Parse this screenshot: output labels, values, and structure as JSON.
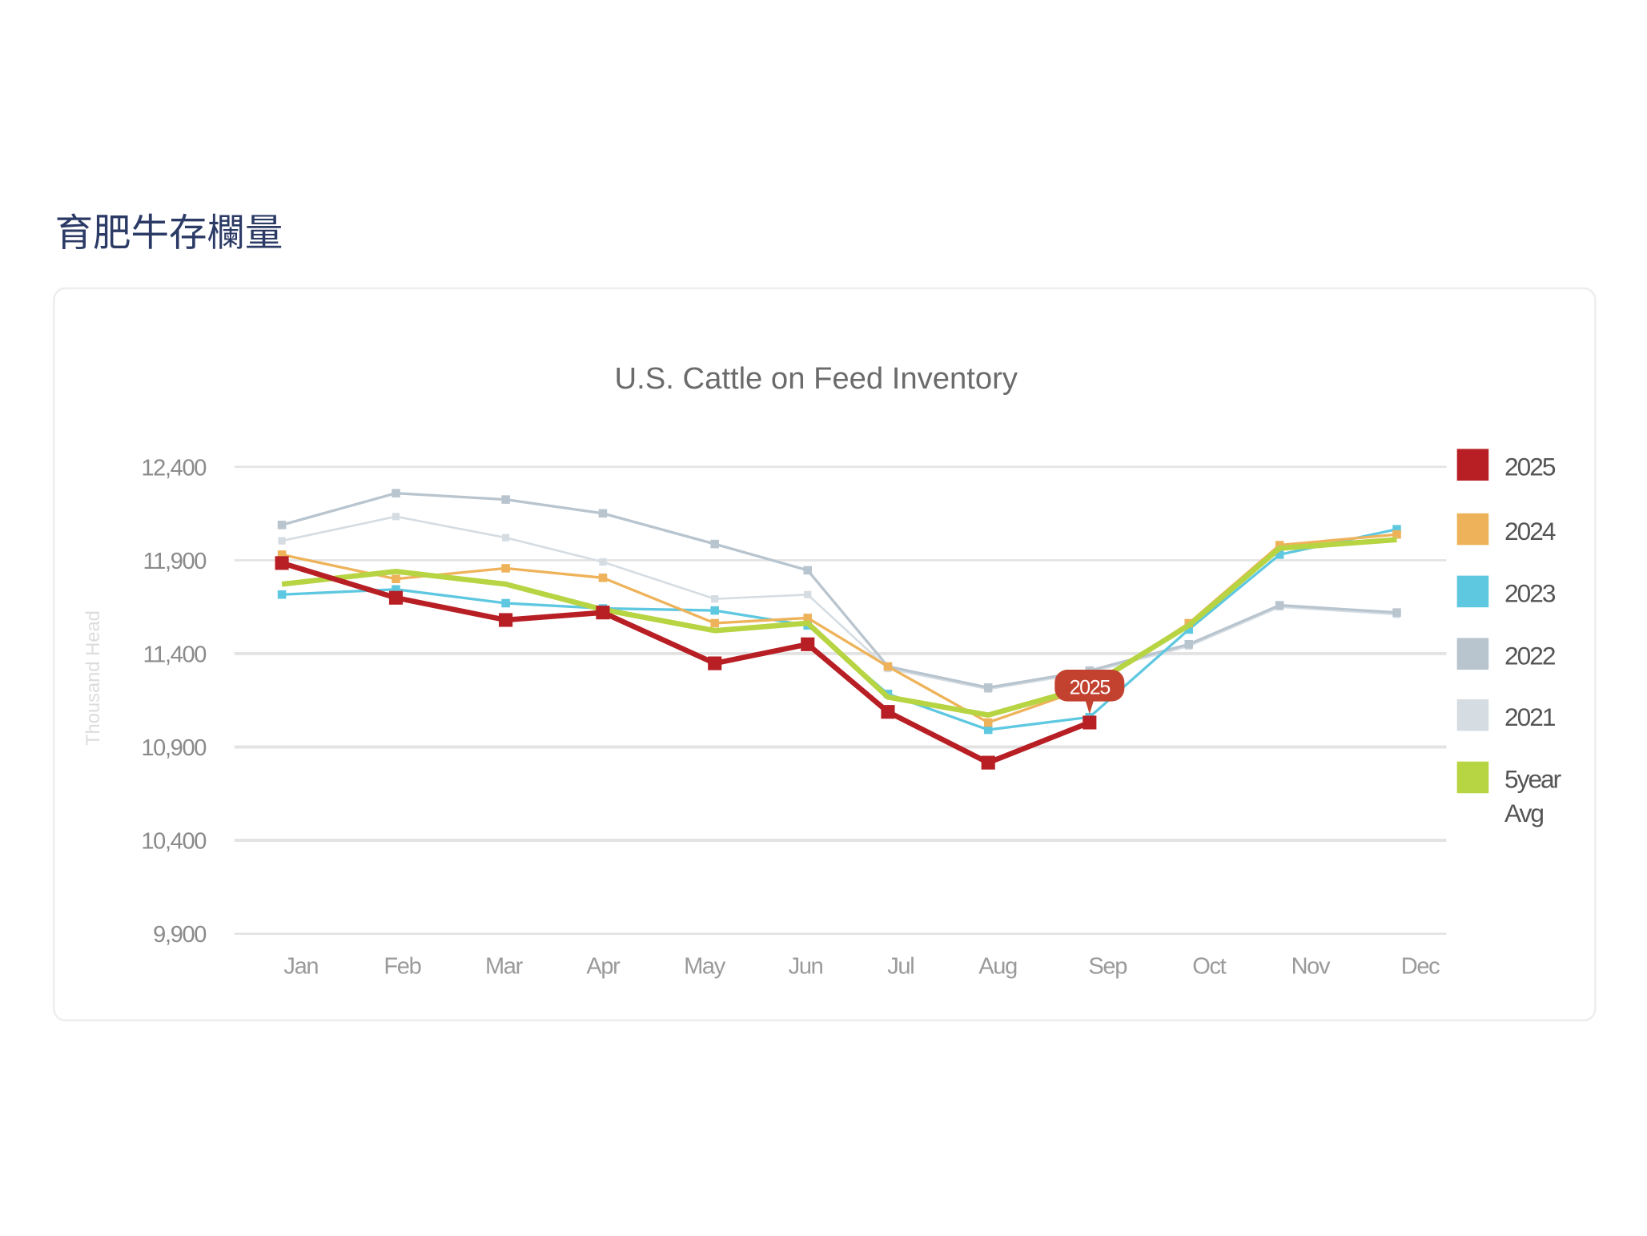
{
  "page_title": "育肥牛存欄量",
  "chart_data": {
    "type": "line",
    "title": "U.S. Cattle on Feed Inventory",
    "xlabel": "",
    "ylabel": "Thousand Head",
    "ylim": [
      9900,
      12400
    ],
    "yticks": [
      "12,400",
      "11,900",
      "11,400",
      "10,900",
      "10,400",
      "9,900"
    ],
    "ytick_values": [
      12400,
      11900,
      11400,
      10900,
      10400,
      9900
    ],
    "grid": true,
    "legend_position": "right",
    "categories": [
      "Jan",
      "Feb",
      "Mar",
      "Apr",
      "May",
      "Jun",
      "Jul",
      "Aug",
      "Sep",
      "Oct",
      "Nov",
      "Dec"
    ],
    "tooltip": {
      "label": "2025",
      "series": "2025",
      "category": "Sep"
    },
    "series": [
      {
        "name": "2021",
        "color": "#d5dde3",
        "width": 2,
        "marker": 7,
        "values": [
          12004,
          12134,
          12021,
          11891,
          11693,
          11716,
          11320,
          11210,
          11300,
          11440,
          11650,
          11610
        ]
      },
      {
        "name": "2022",
        "color": "#b8c4ce",
        "width": 2.5,
        "marker": 8,
        "values": [
          12089,
          12259,
          12225,
          12151,
          11987,
          11846,
          11331,
          11218,
          11309,
          11450,
          11659,
          11620
        ]
      },
      {
        "name": "2023",
        "color": "#5ec8e0",
        "width": 2.5,
        "marker": 8,
        "values": [
          11716,
          11744,
          11670,
          11642,
          11631,
          11551,
          11184,
          10992,
          11060,
          11529,
          11930,
          12066
        ]
      },
      {
        "name": "2024",
        "color": "#eeb35a",
        "width": 2.5,
        "marker": 8,
        "values": [
          11930,
          11800,
          11857,
          11806,
          11563,
          11591,
          11331,
          11031,
          11220,
          11563,
          11981,
          12038
        ]
      },
      {
        "name": "5year Avg",
        "color": "#b7d443",
        "width": 5,
        "marker": 0,
        "values": [
          11772,
          11840,
          11772,
          11636,
          11523,
          11563,
          11167,
          11071,
          11224,
          11551,
          11964,
          12010
        ]
      },
      {
        "name": "2025",
        "color": "#b81f24",
        "width": 5,
        "marker": 13,
        "values": [
          11885,
          11699,
          11580,
          11620,
          11348,
          11450,
          11088,
          10816,
          11031,
          null,
          null,
          null
        ]
      }
    ],
    "legend": [
      {
        "label": "2025",
        "color": "#b81f24"
      },
      {
        "label": "2024",
        "color": "#eeb35a"
      },
      {
        "label": "2023",
        "color": "#5ec8e0"
      },
      {
        "label": "2022",
        "color": "#b8c4ce"
      },
      {
        "label": "2021",
        "color": "#d5dde3"
      },
      {
        "label": "5year Avg",
        "color": "#b7d443"
      }
    ],
    "tooltip_color": "#c2412f"
  }
}
